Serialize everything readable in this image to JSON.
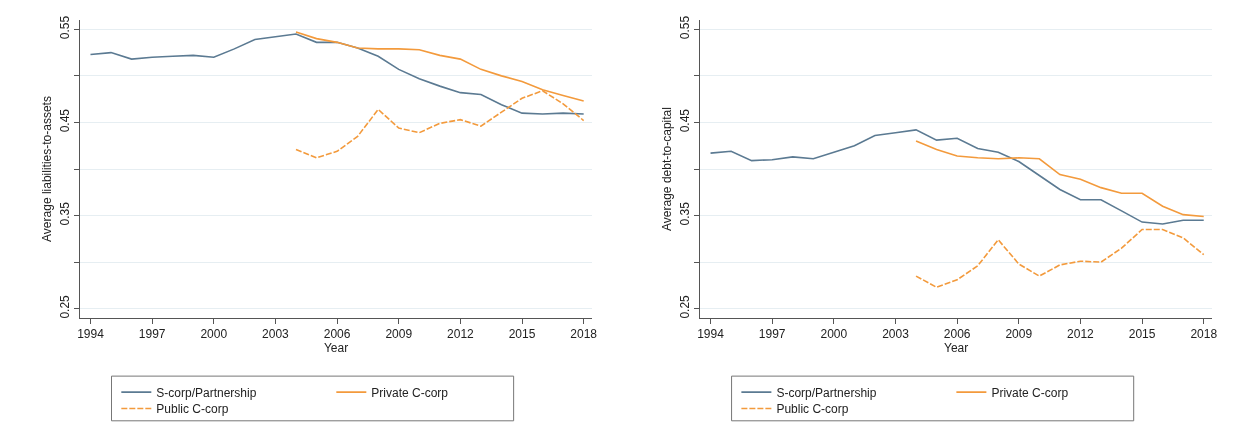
{
  "chart_data": [
    {
      "type": "line",
      "xlabel": "Year",
      "ylabel": "Average liabilities-to-assets",
      "xlim": [
        1993.5,
        2018.4
      ],
      "ylim": [
        0.24,
        0.56
      ],
      "xticks": [
        1994,
        1997,
        2000,
        2003,
        2006,
        2009,
        2012,
        2015,
        2018
      ],
      "yticks": [
        0.25,
        {
          "value": 0.3,
          "label": null
        },
        0.35,
        {
          "value": 0.4,
          "label": null
        },
        0.45,
        {
          "value": 0.5,
          "label": null
        },
        0.55
      ],
      "grid": "y",
      "legend": "bottom",
      "series": [
        {
          "name": "S-corp/Partnership",
          "color": "#5b7a92",
          "line_style": "solid",
          "x": [
            1994,
            1995,
            1996,
            1997,
            1998,
            1999,
            2000,
            2001,
            2002,
            2003,
            2004,
            2005,
            2006,
            2007,
            2008,
            2009,
            2010,
            2011,
            2012,
            2013,
            2014,
            2015,
            2016,
            2017,
            2018
          ],
          "values": [
            0.523,
            0.525,
            0.518,
            0.52,
            0.521,
            0.522,
            0.52,
            0.529,
            0.539,
            0.542,
            0.545,
            0.536,
            0.536,
            0.53,
            0.521,
            0.507,
            0.497,
            0.489,
            0.482,
            0.48,
            0.469,
            0.46,
            0.459,
            0.46,
            0.459
          ]
        },
        {
          "name": "Private C-corp",
          "color": "#f39a3c",
          "line_style": "solid",
          "x": [
            2004,
            2005,
            2006,
            2007,
            2008,
            2009,
            2010,
            2011,
            2012,
            2013,
            2014,
            2015,
            2016,
            2017,
            2018
          ],
          "values": [
            0.547,
            0.54,
            0.536,
            0.53,
            0.529,
            0.529,
            0.528,
            0.522,
            0.518,
            0.507,
            0.5,
            0.494,
            0.485,
            0.479,
            0.473
          ]
        },
        {
          "name": "Public C-corp",
          "color": "#f39a3c",
          "line_style": "dashed",
          "x": [
            2004,
            2005,
            2006,
            2007,
            2008,
            2009,
            2010,
            2011,
            2012,
            2013,
            2014,
            2015,
            2016,
            2017,
            2018
          ],
          "values": [
            0.421,
            0.412,
            0.419,
            0.435,
            0.464,
            0.444,
            0.439,
            0.449,
            0.453,
            0.446,
            0.461,
            0.476,
            0.484,
            0.47,
            0.452
          ]
        }
      ]
    },
    {
      "type": "line",
      "xlabel": "Year",
      "ylabel": "Average debt-to-capital",
      "xlim": [
        1993.5,
        2018.4
      ],
      "ylim": [
        0.24,
        0.56
      ],
      "xticks": [
        1994,
        1997,
        2000,
        2003,
        2006,
        2009,
        2012,
        2015,
        2018
      ],
      "yticks": [
        0.25,
        {
          "value": 0.3,
          "label": null
        },
        0.35,
        {
          "value": 0.4,
          "label": null
        },
        0.45,
        {
          "value": 0.5,
          "label": null
        },
        0.55
      ],
      "grid": "y",
      "legend": "bottom",
      "series": [
        {
          "name": "S-corp/Partnership",
          "color": "#5b7a92",
          "line_style": "solid",
          "x": [
            1994,
            1995,
            1996,
            1997,
            1998,
            1999,
            2000,
            2001,
            2002,
            2003,
            2004,
            2005,
            2006,
            2007,
            2008,
            2009,
            2010,
            2011,
            2012,
            2013,
            2014,
            2015,
            2016,
            2017,
            2018
          ],
          "values": [
            0.417,
            0.419,
            0.409,
            0.41,
            0.413,
            0.411,
            0.418,
            0.425,
            0.436,
            0.439,
            0.442,
            0.431,
            0.433,
            0.422,
            0.418,
            0.408,
            0.393,
            0.378,
            0.367,
            0.367,
            0.355,
            0.343,
            0.341,
            0.345,
            0.345
          ]
        },
        {
          "name": "Private C-corp",
          "color": "#f39a3c",
          "line_style": "solid",
          "x": [
            2004,
            2005,
            2006,
            2007,
            2008,
            2009,
            2010,
            2011,
            2012,
            2013,
            2014,
            2015,
            2016,
            2017,
            2018
          ],
          "values": [
            0.43,
            0.421,
            0.414,
            0.412,
            0.411,
            0.412,
            0.411,
            0.394,
            0.389,
            0.38,
            0.374,
            0.374,
            0.36,
            0.351,
            0.349
          ]
        },
        {
          "name": "Public C-corp",
          "color": "#f39a3c",
          "line_style": "dashed",
          "x": [
            2004,
            2005,
            2006,
            2007,
            2008,
            2009,
            2010,
            2011,
            2012,
            2013,
            2014,
            2015,
            2016,
            2017,
            2018
          ],
          "values": [
            0.285,
            0.273,
            0.281,
            0.296,
            0.324,
            0.298,
            0.285,
            0.297,
            0.301,
            0.3,
            0.315,
            0.335,
            0.335,
            0.326,
            0.308
          ]
        }
      ]
    }
  ]
}
